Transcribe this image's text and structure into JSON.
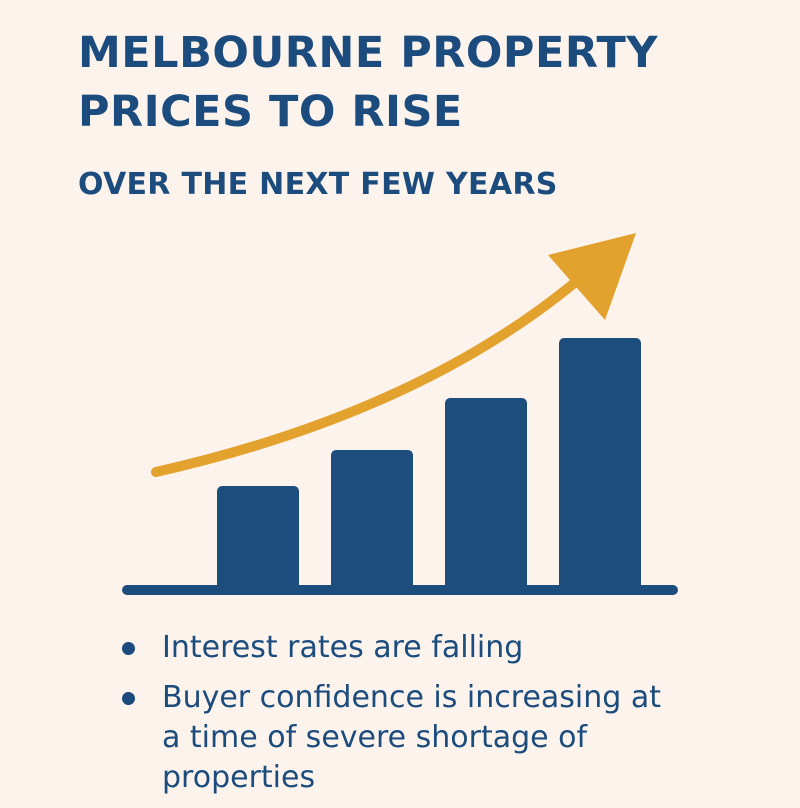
{
  "title_lines": [
    "MELBOURNE PROPERTY",
    "PRICES TO RISE"
  ],
  "subtitle": "OVER THE NEXT FEW YEARS",
  "bullets": [
    "Interest rates are falling",
    "Buyer confidence is increasing at a time of severe shortage of properties"
  ],
  "colors": {
    "navy": "#1c4b7e",
    "bar": "#1d4d7c",
    "arrow": "#e3a12e",
    "background": "#fcf4ec"
  },
  "chart_data": {
    "type": "bar",
    "categories": [
      "",
      "",
      "",
      ""
    ],
    "values": [
      25,
      34,
      47,
      62
    ],
    "ylim": [
      0,
      65
    ],
    "trend_arrow": "rising",
    "grid": false
  }
}
